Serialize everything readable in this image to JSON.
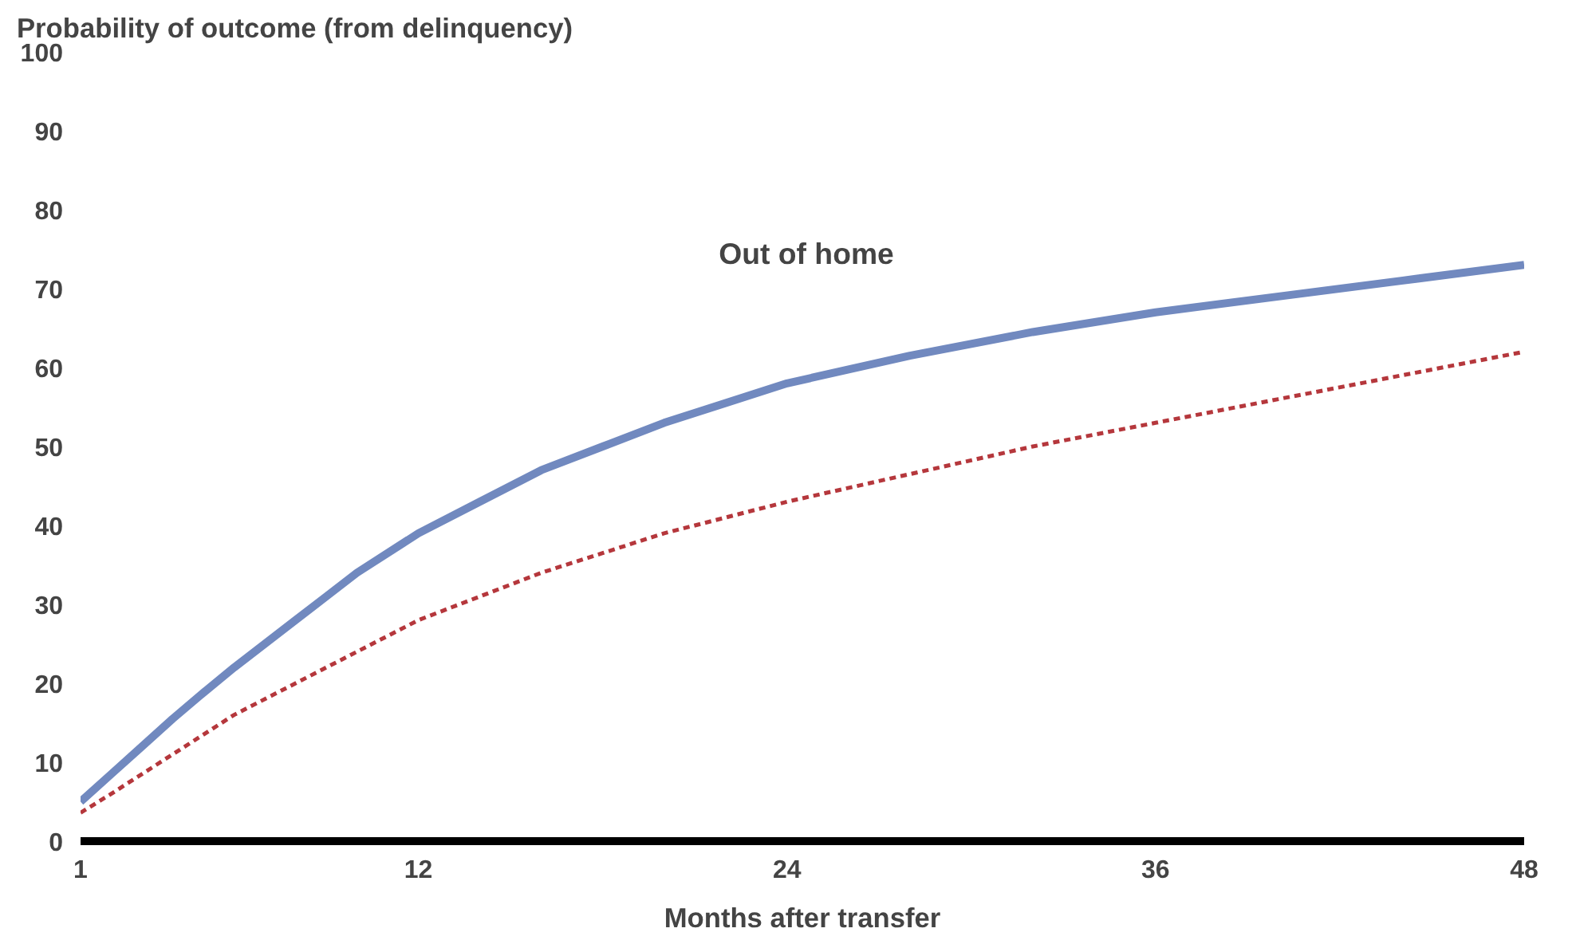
{
  "chart_data": {
    "type": "line",
    "ylabel": "Probability of outcome (from delinquency)",
    "xlabel": "Months after transfer",
    "annotations": [
      "Out of home"
    ],
    "series": [
      {
        "color": "#7189bf",
        "x": [
          1,
          2,
          3,
          4,
          5,
          6,
          7,
          8,
          9,
          10,
          12,
          14,
          16,
          18,
          20,
          24,
          28,
          32,
          36,
          40,
          44,
          48
        ],
        "values": [
          5,
          8.5,
          12,
          15.5,
          18.8,
          22,
          25,
          28,
          31,
          34,
          39,
          43,
          47,
          50,
          53,
          58,
          61.5,
          64.5,
          67,
          69,
          71,
          73
        ],
        "line_style": "solid"
      },
      {
        "color": "#b5373c",
        "x": [
          1,
          2,
          3,
          4,
          5,
          6,
          8,
          10,
          12,
          14,
          16,
          18,
          20,
          24,
          28,
          32,
          36,
          40,
          44,
          48
        ],
        "values": [
          3.6,
          6,
          8.5,
          11,
          13.5,
          16,
          20,
          24,
          28,
          31,
          34,
          36.5,
          39,
          43,
          46.5,
          50,
          53,
          56,
          59,
          62
        ],
        "line_style": "dashed"
      }
    ],
    "xlim": [
      1,
      48
    ],
    "ylim": [
      0,
      100
    ],
    "xticks": [
      1,
      12,
      24,
      36,
      48
    ],
    "yticks": [
      0,
      10,
      20,
      30,
      40,
      50,
      60,
      70,
      80,
      90,
      100
    ],
    "grid": false,
    "marker": "none"
  }
}
